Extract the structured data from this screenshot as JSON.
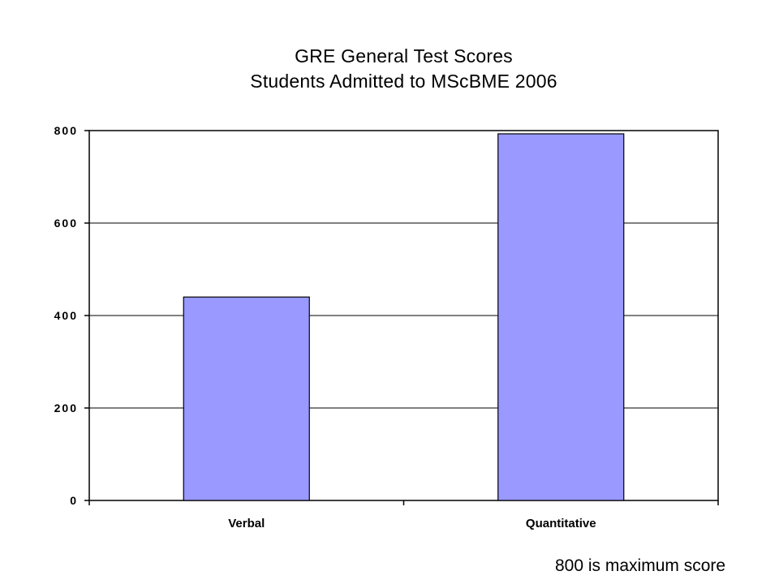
{
  "chart_data": {
    "type": "bar",
    "title": "GRE General Test Scores",
    "subtitle": "Students Admitted to MScBME 2006",
    "categories": [
      "Verbal",
      "Quantitative"
    ],
    "values": [
      440,
      793
    ],
    "ylim": [
      0,
      800
    ],
    "yticks": [
      "0",
      "200",
      "400",
      "600",
      "800"
    ],
    "grid": true,
    "bar_color": "#9999ff",
    "bar_outline": "#000000"
  },
  "footnote": "800 is maximum score"
}
